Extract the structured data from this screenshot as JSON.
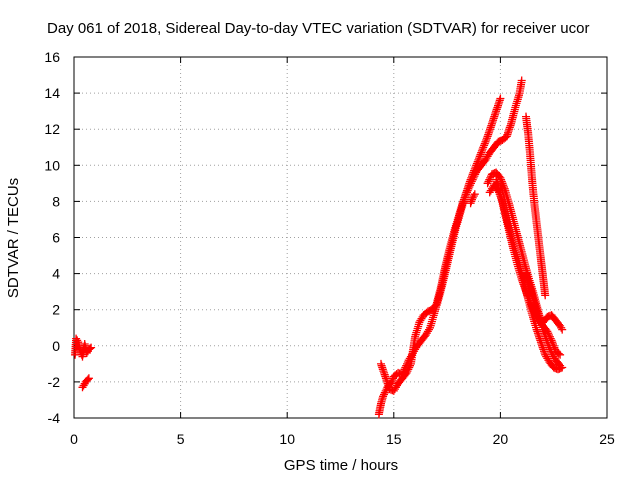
{
  "chart_data": {
    "type": "scatter",
    "title": "Day 061 of 2018, Sidereal Day-to-day VTEC variation (SDTVAR) for receiver ucor",
    "xlabel": "GPS time / hours",
    "ylabel": "SDTVAR / TECUs",
    "xlim": [
      0,
      25
    ],
    "ylim": [
      -4,
      16
    ],
    "xticks": [
      0,
      5,
      10,
      15,
      20,
      25
    ],
    "yticks": [
      -4,
      -2,
      0,
      2,
      4,
      6,
      8,
      10,
      12,
      14,
      16
    ],
    "grid": true,
    "marker": "plus",
    "marker_color": "#ff0000",
    "series": [
      {
        "segments": [
          [
            [
              0.05,
              -0.5
            ],
            [
              0.1,
              0.4
            ],
            [
              0.2,
              0.2
            ],
            [
              0.3,
              -0.3
            ],
            [
              0.4,
              -0.6
            ],
            [
              0.5,
              0.1
            ],
            [
              0.6,
              -0.4
            ],
            [
              0.7,
              -0.2
            ],
            [
              0.8,
              -0.1
            ]
          ],
          [
            [
              0.4,
              -2.3
            ],
            [
              0.55,
              -2.0
            ],
            [
              0.7,
              -1.8
            ]
          ],
          [
            [
              14.3,
              -3.8
            ],
            [
              14.4,
              -3.2
            ],
            [
              14.5,
              -2.8
            ],
            [
              14.7,
              -2.3
            ],
            [
              14.9,
              -2.0
            ],
            [
              15.0,
              -1.7
            ],
            [
              15.2,
              -1.5
            ],
            [
              15.4,
              -1.6
            ],
            [
              15.5,
              -1.3
            ],
            [
              15.7,
              -0.8
            ],
            [
              15.9,
              -0.4
            ],
            [
              16.1,
              0.0
            ],
            [
              16.3,
              0.3
            ],
            [
              16.5,
              0.6
            ],
            [
              16.7,
              1.0
            ],
            [
              16.9,
              1.8
            ],
            [
              17.1,
              2.6
            ],
            [
              17.3,
              3.5
            ],
            [
              17.5,
              4.5
            ],
            [
              17.7,
              5.5
            ],
            [
              17.9,
              6.5
            ],
            [
              18.1,
              7.3
            ],
            [
              18.3,
              8.1
            ],
            [
              18.5,
              8.7
            ],
            [
              18.7,
              9.2
            ],
            [
              18.9,
              9.7
            ],
            [
              19.1,
              10.0
            ],
            [
              19.3,
              10.3
            ],
            [
              19.5,
              10.7
            ],
            [
              19.7,
              11.0
            ],
            [
              19.9,
              11.3
            ],
            [
              20.1,
              11.4
            ],
            [
              20.3,
              11.6
            ],
            [
              20.5,
              12.3
            ],
            [
              20.7,
              13.2
            ],
            [
              20.9,
              14.0
            ],
            [
              21.0,
              14.7
            ]
          ],
          [
            [
              14.4,
              -1.0
            ],
            [
              14.6,
              -1.7
            ],
            [
              14.8,
              -2.4
            ],
            [
              15.0,
              -2.5
            ],
            [
              15.2,
              -2.1
            ],
            [
              15.4,
              -1.8
            ],
            [
              15.6,
              -1.5
            ],
            [
              15.8,
              -1.0
            ],
            [
              16.0,
              0.5
            ],
            [
              16.2,
              1.3
            ],
            [
              16.4,
              1.7
            ],
            [
              16.6,
              1.9
            ],
            [
              16.8,
              2.0
            ],
            [
              17.0,
              2.3
            ],
            [
              17.2,
              3.2
            ],
            [
              17.4,
              4.3
            ],
            [
              17.6,
              5.3
            ],
            [
              17.8,
              6.2
            ],
            [
              18.0,
              7.0
            ],
            [
              18.2,
              7.8
            ],
            [
              18.4,
              8.5
            ],
            [
              18.6,
              9.2
            ],
            [
              18.8,
              9.8
            ],
            [
              19.0,
              10.4
            ],
            [
              19.2,
              11.0
            ],
            [
              19.4,
              11.6
            ],
            [
              19.6,
              12.3
            ],
            [
              19.8,
              13.0
            ],
            [
              20.0,
              13.7
            ]
          ],
          [
            [
              18.6,
              7.9
            ],
            [
              18.7,
              8.2
            ],
            [
              18.8,
              8.4
            ]
          ],
          [
            [
              19.4,
              9.0
            ],
            [
              19.6,
              9.5
            ],
            [
              19.8,
              9.6
            ],
            [
              20.0,
              9.3
            ],
            [
              20.2,
              8.7
            ],
            [
              20.4,
              7.9
            ],
            [
              20.6,
              7.0
            ],
            [
              20.8,
              6.1
            ],
            [
              21.0,
              5.2
            ],
            [
              21.2,
              4.3
            ],
            [
              21.4,
              3.5
            ],
            [
              21.6,
              2.7
            ],
            [
              21.8,
              1.8
            ],
            [
              22.0,
              0.9
            ],
            [
              22.2,
              0.2
            ],
            [
              22.4,
              -0.4
            ],
            [
              22.6,
              -0.8
            ],
            [
              22.8,
              -1.1
            ]
          ],
          [
            [
              19.5,
              8.5
            ],
            [
              19.7,
              8.9
            ],
            [
              19.9,
              8.6
            ],
            [
              20.1,
              8.0
            ],
            [
              20.3,
              7.0
            ],
            [
              20.5,
              6.2
            ],
            [
              20.7,
              5.3
            ],
            [
              20.9,
              4.5
            ],
            [
              21.1,
              3.5
            ],
            [
              21.3,
              2.6
            ],
            [
              21.5,
              1.7
            ],
            [
              21.7,
              0.9
            ],
            [
              21.9,
              0.2
            ],
            [
              22.1,
              -0.5
            ],
            [
              22.3,
              -0.9
            ],
            [
              22.5,
              -1.2
            ],
            [
              22.7,
              -1.3
            ],
            [
              22.9,
              -1.2
            ]
          ],
          [
            [
              19.8,
              9.2
            ],
            [
              20.0,
              8.4
            ],
            [
              20.2,
              7.4
            ],
            [
              20.4,
              6.4
            ],
            [
              20.6,
              5.4
            ],
            [
              20.8,
              4.5
            ],
            [
              21.0,
              3.7
            ],
            [
              21.2,
              3.0
            ],
            [
              21.4,
              2.4
            ],
            [
              21.6,
              1.8
            ],
            [
              21.8,
              1.4
            ],
            [
              22.0,
              1.1
            ],
            [
              22.2,
              0.8
            ],
            [
              22.4,
              0.3
            ],
            [
              22.6,
              -0.3
            ],
            [
              22.8,
              -0.5
            ]
          ],
          [
            [
              21.2,
              4.0
            ],
            [
              21.4,
              3.2
            ],
            [
              21.6,
              2.4
            ],
            [
              21.8,
              1.6
            ],
            [
              22.0,
              1.3
            ],
            [
              22.2,
              1.6
            ],
            [
              22.4,
              1.7
            ],
            [
              22.6,
              1.4
            ],
            [
              22.8,
              1.1
            ],
            [
              22.9,
              0.9
            ]
          ],
          [
            [
              21.2,
              12.7
            ],
            [
              21.3,
              11.8
            ],
            [
              21.4,
              10.5
            ],
            [
              21.5,
              9.0
            ],
            [
              21.6,
              7.8
            ],
            [
              21.7,
              6.8
            ],
            [
              21.8,
              5.8
            ],
            [
              21.9,
              4.8
            ],
            [
              22.0,
              3.8
            ],
            [
              22.1,
              2.8
            ]
          ]
        ]
      }
    ]
  }
}
